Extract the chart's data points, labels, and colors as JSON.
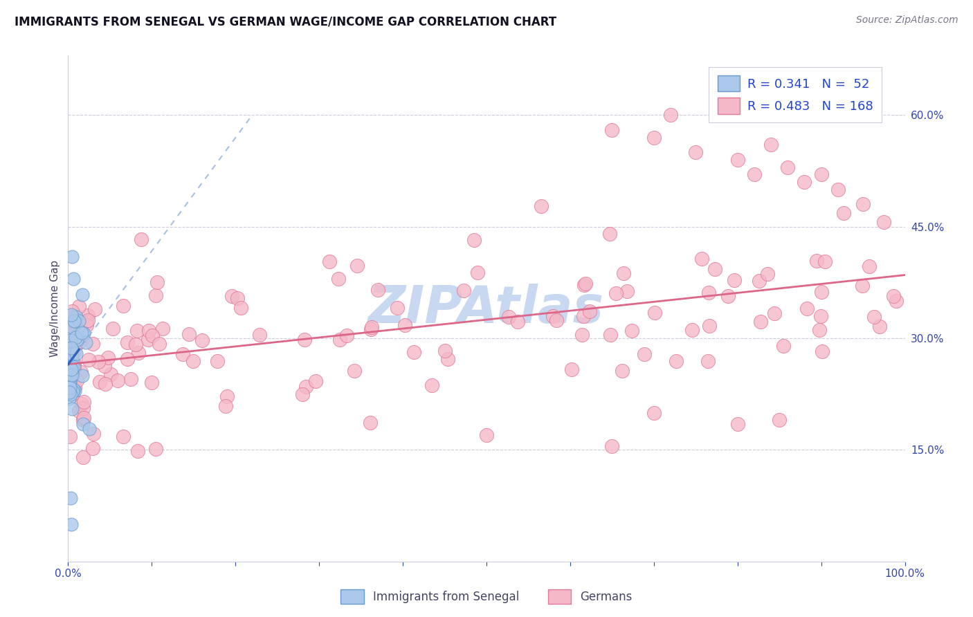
{
  "title": "IMMIGRANTS FROM SENEGAL VS GERMAN WAGE/INCOME GAP CORRELATION CHART",
  "source": "Source: ZipAtlas.com",
  "ylabel": "Wage/Income Gap",
  "xlim": [
    0.0,
    1.0
  ],
  "ylim": [
    0.0,
    0.68
  ],
  "right_ytick_vals": [
    0.15,
    0.3,
    0.45,
    0.6
  ],
  "right_ytick_labels": [
    "15.0%",
    "30.0%",
    "45.0%",
    "60.0%"
  ],
  "xtick_vals": [
    0.0,
    0.1,
    0.2,
    0.3,
    0.4,
    0.5,
    0.6,
    0.7,
    0.8,
    0.9,
    1.0
  ],
  "xtick_labels": [
    "0.0%",
    "",
    "",
    "",
    "",
    "",
    "",
    "",
    "",
    "",
    "100.0%"
  ],
  "legend_labels_bottom": [
    "Immigrants from Senegal",
    "Germans"
  ],
  "senegal_color": "#aac8ea",
  "senegal_edge": "#6699cc",
  "german_color": "#f5b8c8",
  "german_edge": "#e07898",
  "trend_senegal_solid_color": "#3366bb",
  "trend_senegal_dash_color": "#88aadd",
  "trend_german_color": "#dd6688",
  "background_color": "#ffffff",
  "grid_color": "#ccccdd",
  "watermark_text": "ZIPAtlas",
  "watermark_color": "#c8d8f0",
  "title_fontsize": 12,
  "source_fontsize": 10,
  "axis_label_fontsize": 11,
  "tick_fontsize": 11,
  "legend_fontsize": 13,
  "legend_text_color": "#2244cc",
  "tick_label_color": "#3344aa",
  "axis_label_color": "#444466",
  "senegal_R": 0.341,
  "senegal_N": 52,
  "german_R": 0.483,
  "german_N": 168,
  "trend_ger_x0": 0.0,
  "trend_ger_y0": 0.265,
  "trend_ger_x1": 1.0,
  "trend_ger_y1": 0.385,
  "trend_sen_solid_x0": 0.0,
  "trend_sen_solid_y0": 0.265,
  "trend_sen_solid_x1": 0.013,
  "trend_sen_solid_y1": 0.37,
  "trend_sen_dash_x0": 0.0,
  "trend_sen_dash_y0": 0.265,
  "trend_sen_dash_x1": 0.22,
  "trend_sen_dash_y1": 0.6
}
